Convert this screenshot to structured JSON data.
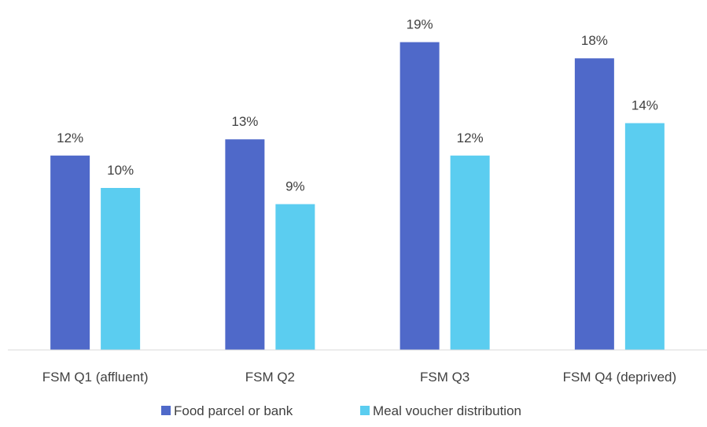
{
  "chart_data": {
    "type": "bar",
    "categories": [
      "FSM Q1 (affluent)",
      "FSM Q2",
      "FSM Q3",
      "FSM Q4 (deprived)"
    ],
    "series": [
      {
        "name": "Food parcel or bank",
        "values": [
          12,
          13,
          19,
          18
        ],
        "labels": [
          "12%",
          "13%",
          "19%",
          "18%"
        ],
        "color": "#4F69C9"
      },
      {
        "name": "Meal voucher distribution",
        "values": [
          10,
          9,
          12,
          14
        ],
        "labels": [
          "10%",
          "9%",
          "12%",
          "14%"
        ],
        "color": "#5BCDF0"
      }
    ],
    "title": "",
    "xlabel": "",
    "ylabel": "",
    "ylim": [
      0,
      20
    ],
    "grid": false,
    "legend_position": "bottom",
    "data_labels": true,
    "axis_color": "#d9d9d9",
    "label_color": "#404040"
  }
}
